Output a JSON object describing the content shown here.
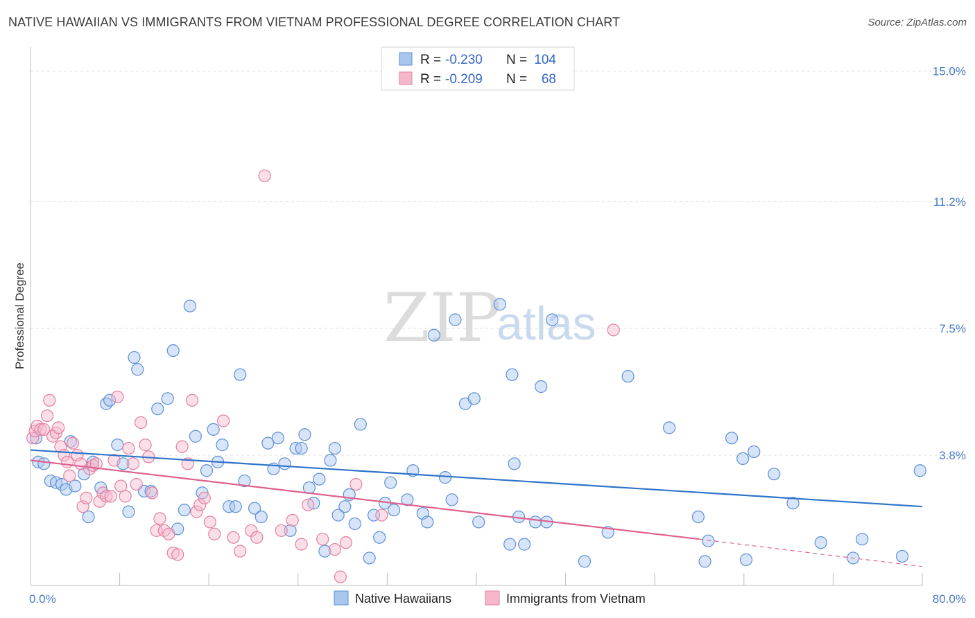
{
  "title": "NATIVE HAWAIIAN VS IMMIGRANTS FROM VIETNAM PROFESSIONAL DEGREE CORRELATION CHART",
  "source": "Source: ZipAtlas.com",
  "watermark": {
    "zip": "ZIP",
    "atlas": "atlas"
  },
  "legend": {
    "rows": [
      {
        "r_label": "R = ",
        "r_value": "-0.230",
        "n_label": "N = ",
        "n_value": "104",
        "color": "#a9c6ef"
      },
      {
        "r_label": "R = ",
        "r_value": "-0.209",
        "n_label": "N = ",
        "n_value": "68",
        "color": "#f6b7cb"
      }
    ]
  },
  "bottom_legend": [
    "Native Hawaiians",
    "Immigrants from Vietnam"
  ],
  "chart_data": {
    "type": "scatter",
    "title": "NATIVE HAWAIIAN VS IMMIGRANTS FROM VIETNAM PROFESSIONAL DEGREE CORRELATION CHART",
    "xlabel": "",
    "ylabel": "Professional Degree",
    "xlim": [
      0,
      80
    ],
    "ylim": [
      0,
      15.5
    ],
    "x_tick_labels": [
      "0.0%",
      "80.0%"
    ],
    "y_ticks": [
      3.8,
      7.5,
      11.2,
      15.0
    ],
    "y_tick_labels": [
      "3.8%",
      "7.5%",
      "11.2%",
      "15.0%"
    ],
    "grid": "horizontal dashed",
    "legend_placement": "top-center",
    "colors": {
      "blue_fill": "#a9c6ef",
      "blue_stroke": "#5b8fd6",
      "blue_line": "#2f73c9",
      "pink_fill": "#f6b7cb",
      "pink_stroke": "#e27fa1",
      "pink_line": "#e0608e"
    },
    "series": [
      {
        "name": "Native Hawaiians",
        "r": -0.23,
        "n": 104,
        "trend": {
          "x0": 0,
          "y0": 3.95,
          "x1": 80,
          "y1": 2.3
        },
        "points": [
          [
            0.5,
            4.3
          ],
          [
            0.7,
            3.6
          ],
          [
            1.2,
            3.55
          ],
          [
            1.8,
            3.05
          ],
          [
            2.3,
            3.0
          ],
          [
            2.8,
            2.95
          ],
          [
            3.2,
            2.8
          ],
          [
            3.6,
            4.2
          ],
          [
            4.0,
            2.9
          ],
          [
            4.8,
            3.25
          ],
          [
            5.2,
            2.0
          ],
          [
            5.6,
            3.6
          ],
          [
            6.3,
            2.85
          ],
          [
            6.8,
            5.3
          ],
          [
            7.1,
            5.4
          ],
          [
            7.8,
            4.1
          ],
          [
            8.3,
            3.55
          ],
          [
            8.8,
            2.15
          ],
          [
            9.3,
            6.65
          ],
          [
            9.6,
            6.3
          ],
          [
            10.2,
            2.75
          ],
          [
            10.8,
            2.75
          ],
          [
            11.4,
            5.15
          ],
          [
            12.3,
            5.45
          ],
          [
            12.8,
            6.85
          ],
          [
            13.2,
            1.65
          ],
          [
            13.8,
            2.2
          ],
          [
            14.3,
            8.15
          ],
          [
            14.8,
            4.35
          ],
          [
            15.4,
            2.7
          ],
          [
            15.8,
            3.35
          ],
          [
            16.4,
            4.55
          ],
          [
            16.8,
            3.6
          ],
          [
            17.2,
            4.1
          ],
          [
            17.8,
            2.3
          ],
          [
            18.4,
            2.3
          ],
          [
            18.8,
            6.15
          ],
          [
            19.2,
            3.05
          ],
          [
            20.1,
            2.25
          ],
          [
            20.7,
            2.0
          ],
          [
            21.3,
            4.15
          ],
          [
            21.8,
            3.4
          ],
          [
            22.2,
            4.3
          ],
          [
            22.8,
            3.55
          ],
          [
            23.3,
            1.6
          ],
          [
            23.8,
            4.0
          ],
          [
            24.3,
            4.0
          ],
          [
            24.6,
            4.4
          ],
          [
            25.0,
            2.85
          ],
          [
            25.4,
            2.4
          ],
          [
            25.9,
            3.1
          ],
          [
            26.4,
            1.0
          ],
          [
            26.9,
            3.65
          ],
          [
            27.3,
            4.0
          ],
          [
            27.6,
            2.05
          ],
          [
            28.2,
            2.3
          ],
          [
            28.6,
            2.65
          ],
          [
            29.1,
            1.8
          ],
          [
            29.6,
            4.7
          ],
          [
            30.4,
            0.8
          ],
          [
            30.8,
            2.05
          ],
          [
            31.3,
            1.4
          ],
          [
            31.8,
            2.4
          ],
          [
            32.3,
            3.0
          ],
          [
            32.6,
            2.2
          ],
          [
            33.8,
            2.5
          ],
          [
            34.3,
            3.35
          ],
          [
            35.2,
            2.1
          ],
          [
            35.6,
            1.85
          ],
          [
            36.2,
            7.3
          ],
          [
            37.2,
            3.15
          ],
          [
            37.8,
            2.5
          ],
          [
            38.1,
            7.75
          ],
          [
            39.0,
            5.3
          ],
          [
            39.8,
            5.45
          ],
          [
            40.2,
            1.85
          ],
          [
            42.1,
            8.2
          ],
          [
            43.0,
            1.2
          ],
          [
            43.2,
            6.15
          ],
          [
            43.4,
            3.55
          ],
          [
            43.8,
            2.0
          ],
          [
            44.3,
            1.2
          ],
          [
            45.3,
            1.85
          ],
          [
            45.8,
            5.8
          ],
          [
            46.3,
            1.85
          ],
          [
            46.8,
            7.75
          ],
          [
            49.7,
            0.7
          ],
          [
            51.8,
            1.55
          ],
          [
            53.6,
            6.1
          ],
          [
            57.3,
            4.6
          ],
          [
            59.9,
            2.0
          ],
          [
            60.5,
            0.7
          ],
          [
            60.8,
            1.3
          ],
          [
            62.9,
            4.3
          ],
          [
            63.9,
            3.7
          ],
          [
            64.2,
            0.75
          ],
          [
            64.9,
            3.9
          ],
          [
            66.7,
            3.25
          ],
          [
            68.4,
            2.4
          ],
          [
            70.9,
            1.25
          ],
          [
            73.8,
            0.8
          ],
          [
            74.6,
            1.35
          ],
          [
            78.2,
            0.85
          ],
          [
            79.8,
            3.35
          ]
        ]
      },
      {
        "name": "Immigrants from Vietnam",
        "r": -0.209,
        "n": 68,
        "trend": {
          "x0": 0,
          "y0": 3.65,
          "x1": 60,
          "y1": 1.35
        },
        "trend_dashed_to": {
          "x": 80,
          "y": 0.55
        },
        "points": [
          [
            0.2,
            4.3
          ],
          [
            0.4,
            4.5
          ],
          [
            0.6,
            4.65
          ],
          [
            0.9,
            4.55
          ],
          [
            1.2,
            4.55
          ],
          [
            1.5,
            4.95
          ],
          [
            1.7,
            5.4
          ],
          [
            2.0,
            4.35
          ],
          [
            2.3,
            4.45
          ],
          [
            2.5,
            4.6
          ],
          [
            2.7,
            4.05
          ],
          [
            3.0,
            3.8
          ],
          [
            3.3,
            3.6
          ],
          [
            3.5,
            3.2
          ],
          [
            3.8,
            4.15
          ],
          [
            4.2,
            3.8
          ],
          [
            4.5,
            3.55
          ],
          [
            4.7,
            2.3
          ],
          [
            5.0,
            2.55
          ],
          [
            5.3,
            3.4
          ],
          [
            5.6,
            3.5
          ],
          [
            5.9,
            3.55
          ],
          [
            6.2,
            2.45
          ],
          [
            6.5,
            2.7
          ],
          [
            6.8,
            2.6
          ],
          [
            7.2,
            2.6
          ],
          [
            7.5,
            3.65
          ],
          [
            7.8,
            5.5
          ],
          [
            8.1,
            2.9
          ],
          [
            8.5,
            2.6
          ],
          [
            8.8,
            4.0
          ],
          [
            9.2,
            3.55
          ],
          [
            9.5,
            2.95
          ],
          [
            9.9,
            4.75
          ],
          [
            10.3,
            4.1
          ],
          [
            10.6,
            3.75
          ],
          [
            10.9,
            2.7
          ],
          [
            11.3,
            1.6
          ],
          [
            11.6,
            1.95
          ],
          [
            12.0,
            1.6
          ],
          [
            12.4,
            1.5
          ],
          [
            12.8,
            0.95
          ],
          [
            13.2,
            0.9
          ],
          [
            13.6,
            4.05
          ],
          [
            14.1,
            3.55
          ],
          [
            14.5,
            5.4
          ],
          [
            14.9,
            2.15
          ],
          [
            15.2,
            2.35
          ],
          [
            15.6,
            2.55
          ],
          [
            16.1,
            1.85
          ],
          [
            16.5,
            1.5
          ],
          [
            17.3,
            4.8
          ],
          [
            18.2,
            1.4
          ],
          [
            18.8,
            1.0
          ],
          [
            19.8,
            1.6
          ],
          [
            20.3,
            1.4
          ],
          [
            21.0,
            11.95
          ],
          [
            22.5,
            1.6
          ],
          [
            23.5,
            1.9
          ],
          [
            24.3,
            1.2
          ],
          [
            24.9,
            2.35
          ],
          [
            26.2,
            1.35
          ],
          [
            27.3,
            1.05
          ],
          [
            27.8,
            0.25
          ],
          [
            28.3,
            1.25
          ],
          [
            29.2,
            2.95
          ],
          [
            31.5,
            2.05
          ],
          [
            52.3,
            7.45
          ]
        ]
      }
    ]
  }
}
